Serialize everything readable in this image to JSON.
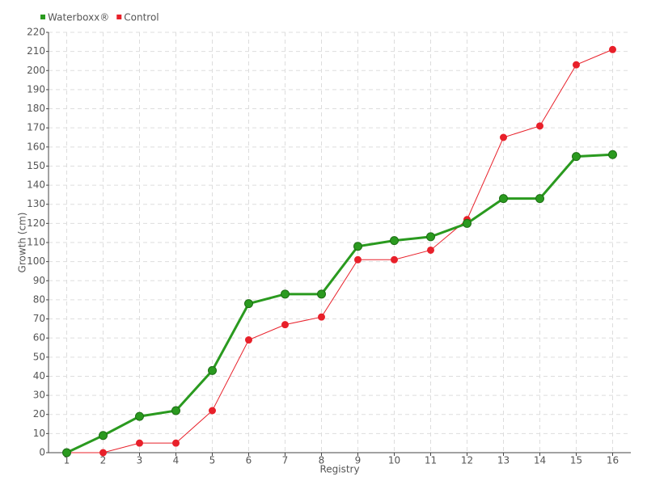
{
  "chart_data": {
    "type": "line",
    "categories": [
      "1",
      "2",
      "3",
      "4",
      "5",
      "6",
      "7",
      "8",
      "9",
      "10",
      "11",
      "12",
      "13",
      "14",
      "15",
      "16"
    ],
    "series": [
      {
        "name": "Waterboxx®",
        "color": "#2a9a1f",
        "values": [
          0,
          9,
          19,
          22,
          43,
          78,
          83,
          83,
          108,
          111,
          113,
          120,
          133,
          133,
          155,
          156
        ]
      },
      {
        "name": "Control",
        "color": "#e8202a",
        "values": [
          0,
          0,
          5,
          5,
          22,
          59,
          67,
          71,
          101,
          101,
          106,
          122,
          165,
          171,
          203,
          211
        ]
      }
    ],
    "y_label": "Growth (cm)",
    "x_label": "Registry",
    "ylim": [
      0,
      220
    ],
    "yticks": [
      0,
      10,
      20,
      30,
      40,
      50,
      60,
      70,
      80,
      90,
      100,
      110,
      120,
      130,
      140,
      150,
      160,
      170,
      180,
      190,
      200,
      210,
      220
    ],
    "grid": true,
    "legend": "top-left"
  }
}
